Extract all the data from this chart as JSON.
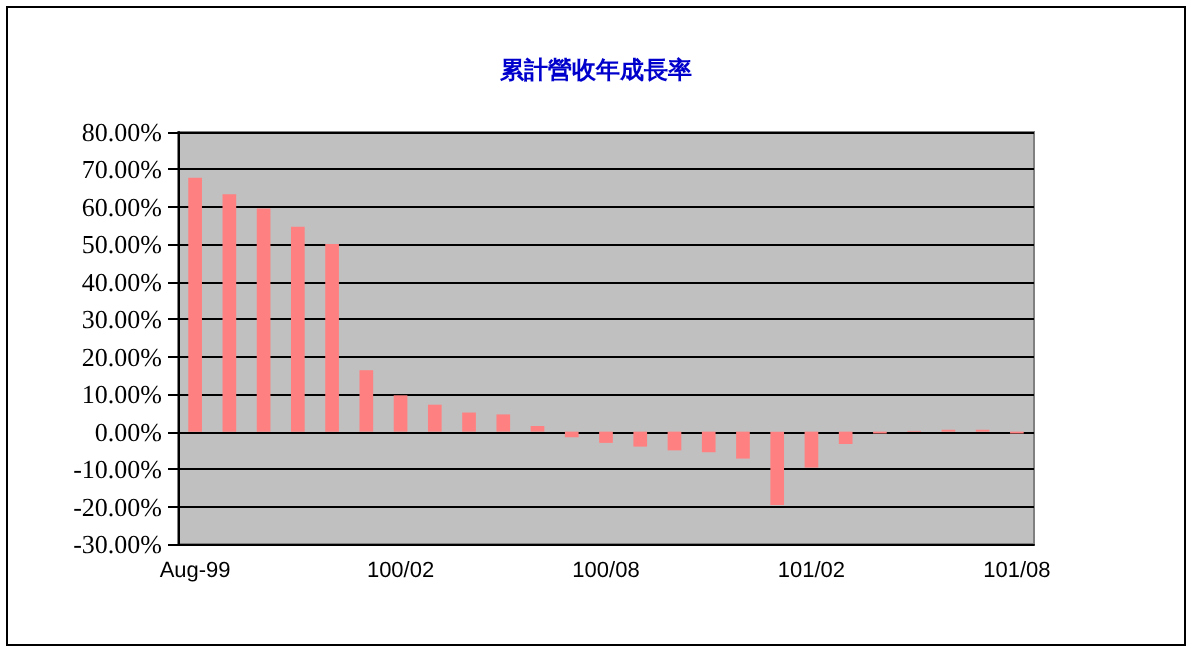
{
  "chart_data": {
    "type": "bar",
    "title": "累計營收年成長率",
    "categories": [
      "Aug-99",
      null,
      null,
      null,
      null,
      null,
      "100/02",
      null,
      null,
      null,
      null,
      null,
      "100/08",
      null,
      null,
      null,
      null,
      null,
      "101/02",
      null,
      null,
      null,
      null,
      null,
      "101/08"
    ],
    "values": [
      67.8,
      63.4,
      59.6,
      54.7,
      50.1,
      16.4,
      9.7,
      7.2,
      5.1,
      4.6,
      1.5,
      -1.5,
      -3,
      -4,
      -5,
      -5.5,
      -7.2,
      -19.6,
      -9.6,
      -3.3,
      -0.5,
      0.2,
      0.5,
      0.5,
      -0.5
    ],
    "color": "#ff8080",
    "ylim": [
      -30,
      80
    ],
    "yticks": [
      {
        "value": -30,
        "label": "-30.00%"
      },
      {
        "value": -20,
        "label": "-20.00%"
      },
      {
        "value": -10,
        "label": "-10.00%"
      },
      {
        "value": 0,
        "label": "0.00%"
      },
      {
        "value": 10,
        "label": "10.00%"
      },
      {
        "value": 20,
        "label": "20.00%"
      },
      {
        "value": 30,
        "label": "30.00%"
      },
      {
        "value": 40,
        "label": "40.00%"
      },
      {
        "value": 50,
        "label": "50.00%"
      },
      {
        "value": 60,
        "label": "60.00%"
      },
      {
        "value": 70,
        "label": "70.00%"
      },
      {
        "value": 80,
        "label": "80.00%"
      }
    ],
    "grid": "y"
  }
}
